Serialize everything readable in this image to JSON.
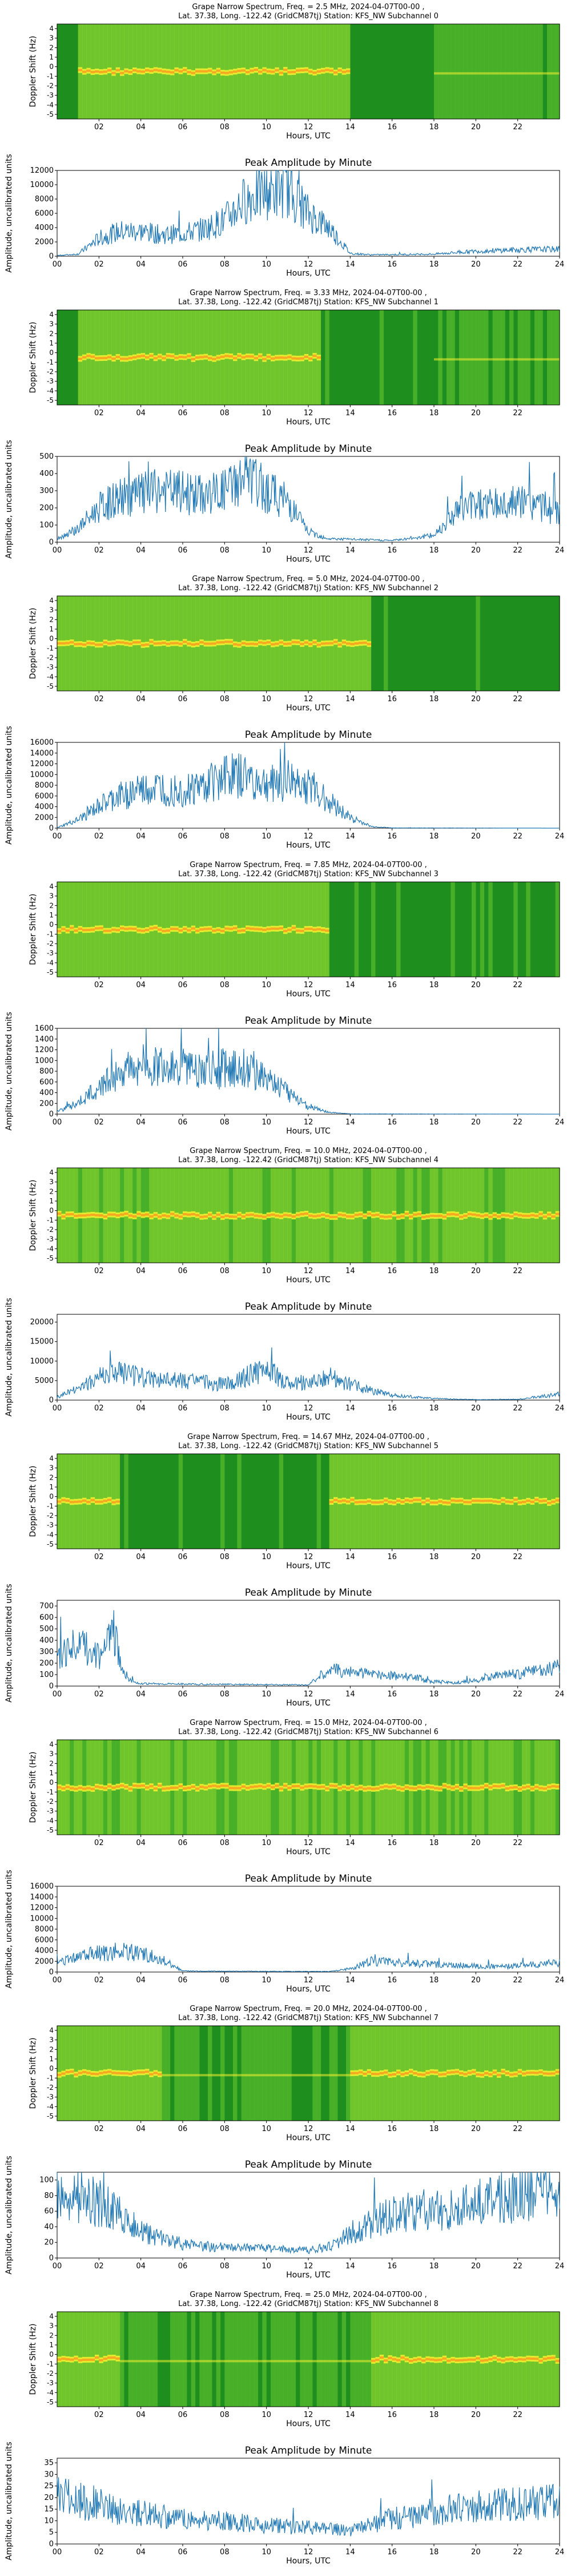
{
  "colors": {
    "spec_bg": "#1f8f1f",
    "spec_mid": "#7fcf2f",
    "spec_hi": "#f2ef30",
    "spec_peak": "#ff8a1a",
    "line": "#1f77b4"
  },
  "common": {
    "spec_x_label": "Hours, UTC",
    "spec_y_label": "Doppler Shift (Hz)",
    "amp_title": "Peak Amplitude by Minute",
    "amp_x_label": "Hours, UTC",
    "amp_y_label": "Amplitude, uncalibrated units",
    "location_line": "Lat.  37.38, Long. -122.42 (GridCM87tj) Station: KFS_NW Subchannel",
    "spec_x_ticks": [
      "02",
      "04",
      "06",
      "08",
      "10",
      "12",
      "14",
      "16",
      "18",
      "20",
      "22"
    ],
    "spec_y_ticks": [
      "4",
      "3",
      "2",
      "1",
      "0",
      "-1",
      "-2",
      "-3",
      "-4",
      "-5"
    ],
    "amp_x_ticks": [
      "00",
      "02",
      "04",
      "06",
      "08",
      "10",
      "12",
      "14",
      "16",
      "18",
      "20",
      "22",
      "24"
    ]
  },
  "chart_data": [
    {
      "type": "heatmap",
      "subchannel": "0",
      "freq_mhz": "2.5",
      "title": "Grape Narrow Spectrum, Freq. = 2.5 MHz, 2024-04-07T00-00 ,",
      "subtitle": "Lat.  37.38, Long. -122.42 (GridCM87tj) Station: KFS_NW Subchannel 0",
      "band": "hours 1-14 bright, dropout 14-18, striped 18-24"
    },
    {
      "type": "line",
      "subchannel": "0",
      "title": "Peak Amplitude by Minute",
      "xlim": [
        0,
        24
      ],
      "ylim": [
        0,
        12000
      ],
      "y_ticks": [
        "0",
        "2000",
        "4000",
        "6000",
        "8000",
        "10000",
        "12000"
      ],
      "profile": [
        [
          0,
          100
        ],
        [
          1,
          300
        ],
        [
          2,
          2500
        ],
        [
          3,
          3500
        ],
        [
          4,
          3500
        ],
        [
          5,
          3000
        ],
        [
          6,
          3200
        ],
        [
          7,
          3800
        ],
        [
          8,
          5000
        ],
        [
          9,
          8000
        ],
        [
          10,
          9000
        ],
        [
          11,
          9500
        ],
        [
          12,
          6000
        ],
        [
          13,
          4000
        ],
        [
          14,
          400
        ],
        [
          15,
          200
        ],
        [
          18,
          300
        ],
        [
          20,
          700
        ],
        [
          22,
          900
        ],
        [
          24,
          1000
        ]
      ]
    },
    {
      "type": "heatmap",
      "subchannel": "1",
      "freq_mhz": "3.33",
      "title": "Grape Narrow Spectrum, Freq. = 3.33 MHz, 2024-04-07T00-00 ,",
      "subtitle": "Lat.  37.38, Long. -122.42 (GridCM87tj) Station: KFS_NW Subchannel 1",
      "band": "hours 1-12 bright"
    },
    {
      "type": "line",
      "subchannel": "1",
      "title": "Peak Amplitude by Minute",
      "xlim": [
        0,
        24
      ],
      "ylim": [
        0,
        500
      ],
      "y_ticks": [
        "0",
        "100",
        "200",
        "300",
        "400",
        "500"
      ],
      "profile": [
        [
          0,
          20
        ],
        [
          1,
          80
        ],
        [
          2,
          200
        ],
        [
          3,
          260
        ],
        [
          4,
          280
        ],
        [
          5,
          300
        ],
        [
          6,
          290
        ],
        [
          7,
          270
        ],
        [
          8,
          300
        ],
        [
          9,
          380
        ],
        [
          10,
          300
        ],
        [
          11,
          240
        ],
        [
          12,
          60
        ],
        [
          13,
          20
        ],
        [
          16,
          10
        ],
        [
          18,
          40
        ],
        [
          19,
          180
        ],
        [
          20,
          230
        ],
        [
          21,
          220
        ],
        [
          22,
          230
        ],
        [
          23,
          220
        ],
        [
          24,
          170
        ]
      ]
    },
    {
      "type": "heatmap",
      "subchannel": "2",
      "freq_mhz": "5.0",
      "title": "Grape Narrow Spectrum, Freq. = 5.0 MHz, 2024-04-07T00-00 ,",
      "subtitle": "Lat.  37.38, Long. -122.42 (GridCM87tj) Station: KFS_NW Subchannel 2",
      "band": "hours 0-15 bright"
    },
    {
      "type": "line",
      "subchannel": "2",
      "title": "Peak Amplitude by Minute",
      "xlim": [
        0,
        24
      ],
      "ylim": [
        0,
        16000
      ],
      "y_ticks": [
        "0",
        "2000",
        "4000",
        "6000",
        "8000",
        "10000",
        "12000",
        "14000",
        "16000"
      ],
      "profile": [
        [
          0,
          100
        ],
        [
          1,
          1500
        ],
        [
          2,
          4000
        ],
        [
          3,
          6000
        ],
        [
          4,
          7000
        ],
        [
          5,
          7500
        ],
        [
          6,
          7000
        ],
        [
          7,
          8000
        ],
        [
          8,
          10000
        ],
        [
          9,
          9500
        ],
        [
          10,
          8000
        ],
        [
          11,
          9000
        ],
        [
          12,
          8000
        ],
        [
          13,
          5000
        ],
        [
          14,
          2000
        ],
        [
          15,
          300
        ],
        [
          16,
          50
        ],
        [
          24,
          0
        ]
      ]
    },
    {
      "type": "heatmap",
      "subchannel": "3",
      "freq_mhz": "7.85",
      "title": "Grape Narrow Spectrum, Freq. = 7.85 MHz, 2024-04-07T00-00 ,",
      "subtitle": "Lat.  37.38, Long. -122.42 (GridCM87tj) Station: KFS_NW Subchannel 3",
      "band": "hours 0-13 bright"
    },
    {
      "type": "line",
      "subchannel": "3",
      "title": "Peak Amplitude by Minute",
      "xlim": [
        0,
        24
      ],
      "ylim": [
        0,
        1600
      ],
      "y_ticks": [
        "0",
        "200",
        "400",
        "600",
        "800",
        "1000",
        "1200",
        "1400",
        "1600"
      ],
      "profile": [
        [
          0,
          50
        ],
        [
          1,
          200
        ],
        [
          2,
          500
        ],
        [
          3,
          800
        ],
        [
          4,
          900
        ],
        [
          5,
          900
        ],
        [
          6,
          850
        ],
        [
          7,
          800
        ],
        [
          8,
          850
        ],
        [
          9,
          900
        ],
        [
          10,
          700
        ],
        [
          11,
          400
        ],
        [
          12,
          150
        ],
        [
          13,
          30
        ],
        [
          14,
          5
        ],
        [
          24,
          0
        ]
      ]
    },
    {
      "type": "heatmap",
      "subchannel": "4",
      "freq_mhz": "10.0",
      "title": "Grape Narrow Spectrum, Freq. = 10.0 MHz, 2024-04-07T00-00 ,",
      "subtitle": "Lat.  37.38, Long. -122.42 (GridCM87tj) Station: KFS_NW Subchannel 4",
      "band": "hours 0-24 bright"
    },
    {
      "type": "line",
      "subchannel": "4",
      "title": "Peak Amplitude by Minute",
      "xlim": [
        0,
        24
      ],
      "ylim": [
        0,
        22000
      ],
      "y_ticks": [
        "0",
        "5000",
        "10000",
        "15000",
        "20000"
      ],
      "profile": [
        [
          0,
          800
        ],
        [
          1,
          3000
        ],
        [
          2,
          6000
        ],
        [
          3,
          7000
        ],
        [
          4,
          6000
        ],
        [
          5,
          5000
        ],
        [
          6,
          5000
        ],
        [
          7,
          4500
        ],
        [
          8,
          4000
        ],
        [
          9,
          6000
        ],
        [
          10,
          8000
        ],
        [
          11,
          4500
        ],
        [
          12,
          4500
        ],
        [
          13,
          6000
        ],
        [
          14,
          4000
        ],
        [
          15,
          2500
        ],
        [
          16,
          1200
        ],
        [
          18,
          400
        ],
        [
          20,
          100
        ],
        [
          22,
          200
        ],
        [
          24,
          1500
        ]
      ]
    },
    {
      "type": "heatmap",
      "subchannel": "5",
      "freq_mhz": "14.67",
      "title": "Grape Narrow Spectrum, Freq. = 14.67 MHz, 2024-04-07T00-00 ,",
      "subtitle": "Lat.  37.38, Long. -122.42 (GridCM87tj) Station: KFS_NW Subchannel 5",
      "band": "hours 0-3 and 13-24 bright"
    },
    {
      "type": "line",
      "subchannel": "5",
      "title": "Peak Amplitude by Minute",
      "xlim": [
        0,
        24
      ],
      "ylim": [
        0,
        750
      ],
      "y_ticks": [
        "0",
        "100",
        "200",
        "300",
        "400",
        "500",
        "600",
        "700"
      ],
      "profile": [
        [
          0,
          250
        ],
        [
          1,
          380
        ],
        [
          2,
          250
        ],
        [
          2.7,
          500
        ],
        [
          3,
          200
        ],
        [
          3.5,
          50
        ],
        [
          4,
          20
        ],
        [
          12,
          10
        ],
        [
          13,
          150
        ],
        [
          14,
          120
        ],
        [
          15,
          110
        ],
        [
          16,
          90
        ],
        [
          17,
          80
        ],
        [
          18,
          40
        ],
        [
          19,
          30
        ],
        [
          20,
          50
        ],
        [
          21,
          90
        ],
        [
          22,
          110
        ],
        [
          23,
          130
        ],
        [
          24,
          170
        ]
      ]
    },
    {
      "type": "heatmap",
      "subchannel": "6",
      "freq_mhz": "15.0",
      "title": "Grape Narrow Spectrum, Freq. = 15.0 MHz, 2024-04-07T00-00 ,",
      "subtitle": "Lat.  37.38, Long. -122.42 (GridCM87tj) Station: KFS_NW Subchannel 6",
      "band": "hours 0-24 bright"
    },
    {
      "type": "line",
      "subchannel": "6",
      "title": "Peak Amplitude by Minute",
      "xlim": [
        0,
        24
      ],
      "ylim": [
        0,
        16000
      ],
      "y_ticks": [
        "0",
        "2000",
        "4000",
        "6000",
        "8000",
        "10000",
        "12000",
        "14000",
        "16000"
      ],
      "profile": [
        [
          0,
          1500
        ],
        [
          1,
          3000
        ],
        [
          2,
          3500
        ],
        [
          3,
          4000
        ],
        [
          4,
          3500
        ],
        [
          5,
          2500
        ],
        [
          6,
          200
        ],
        [
          7,
          150
        ],
        [
          13,
          100
        ],
        [
          14,
          600
        ],
        [
          15,
          2000
        ],
        [
          16,
          1800
        ],
        [
          17,
          1600
        ],
        [
          18,
          1400
        ],
        [
          19,
          1300
        ],
        [
          20,
          1100
        ],
        [
          21,
          1000
        ],
        [
          22,
          1200
        ],
        [
          23,
          1400
        ],
        [
          24,
          1800
        ]
      ]
    },
    {
      "type": "heatmap",
      "subchannel": "7",
      "freq_mhz": "20.0",
      "title": "Grape Narrow Spectrum, Freq. = 20.0 MHz, 2024-04-07T00-00 ,",
      "subtitle": "Lat.  37.38, Long. -122.42 (GridCM87tj) Station: KFS_NW Subchannel 7",
      "band": "hours 0-5 and 14-24 bright, arcs"
    },
    {
      "type": "line",
      "subchannel": "7",
      "title": "Peak Amplitude by Minute",
      "xlim": [
        0,
        24
      ],
      "ylim": [
        0,
        110
      ],
      "y_ticks": [
        "0",
        "20",
        "40",
        "60",
        "80",
        "100"
      ],
      "profile": [
        [
          0,
          85
        ],
        [
          1,
          80
        ],
        [
          2,
          70
        ],
        [
          3,
          55
        ],
        [
          4,
          35
        ],
        [
          5,
          25
        ],
        [
          6,
          18
        ],
        [
          7,
          15
        ],
        [
          8,
          14
        ],
        [
          10,
          12
        ],
        [
          12,
          10
        ],
        [
          13,
          15
        ],
        [
          14,
          30
        ],
        [
          15,
          45
        ],
        [
          16,
          55
        ],
        [
          17,
          60
        ],
        [
          18,
          62
        ],
        [
          19,
          65
        ],
        [
          20,
          70
        ],
        [
          21,
          75
        ],
        [
          22,
          80
        ],
        [
          23,
          90
        ],
        [
          24,
          95
        ]
      ]
    },
    {
      "type": "heatmap",
      "subchannel": "8",
      "freq_mhz": "25.0",
      "title": "Grape Narrow Spectrum, Freq. = 25.0 MHz, 2024-04-07T00-00 ,",
      "subtitle": "Lat.  37.38, Long. -122.42 (GridCM87tj) Station: KFS_NW Subchannel 8",
      "band": "hours 0-3 and 15-24 bright"
    },
    {
      "type": "line",
      "subchannel": "8",
      "title": "Peak Amplitude by Minute",
      "xlim": [
        0,
        24
      ],
      "ylim": [
        0,
        37
      ],
      "y_ticks": [
        "0",
        "5",
        "10",
        "15",
        "20",
        "25",
        "30",
        "35"
      ],
      "profile": [
        [
          0,
          20
        ],
        [
          1,
          19
        ],
        [
          2,
          17
        ],
        [
          3,
          14
        ],
        [
          4,
          13
        ],
        [
          6,
          11
        ],
        [
          8,
          10
        ],
        [
          10,
          8
        ],
        [
          12,
          7
        ],
        [
          14,
          6
        ],
        [
          15,
          8
        ],
        [
          16,
          11
        ],
        [
          17,
          12
        ],
        [
          18,
          14
        ],
        [
          20,
          16
        ],
        [
          22,
          17
        ],
        [
          24,
          19
        ]
      ]
    }
  ]
}
